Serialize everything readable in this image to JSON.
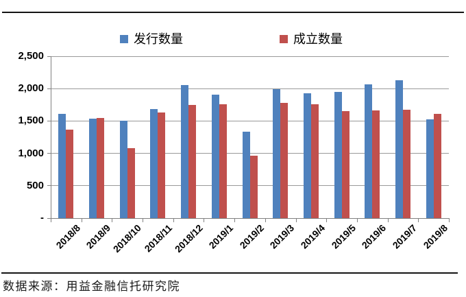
{
  "page": {
    "source_note": "数据来源：用益金融信托研究院"
  },
  "legend": {
    "issued_label": "发行数量",
    "established_label": "成立数量"
  },
  "colors": {
    "issued_blue": "#4F81BD",
    "established_red": "#C0504D",
    "gridline": "#999999",
    "axis": "#808080",
    "text_black": "#000000",
    "rule_black": "#141414"
  },
  "chart_data": {
    "type": "bar",
    "title": "",
    "xlabel": "",
    "ylabel": "",
    "ylim": [
      0,
      2500
    ],
    "ytick_interval": 500,
    "ytick_labels": [
      "-",
      "500",
      "1,000",
      "1,500",
      "2,000",
      "2,500"
    ],
    "grid": true,
    "legend_position": "top",
    "categories": [
      "2018/8",
      "2018/9",
      "2018/10",
      "2018/11",
      "2018/12",
      "2019/1",
      "2019/2",
      "2019/3",
      "2019/4",
      "2019/5",
      "2019/6",
      "2019/7",
      "2019/8"
    ],
    "series": [
      {
        "name": "发行数量",
        "color": "#4F81BD",
        "values": [
          1610,
          1535,
          1500,
          1680,
          2050,
          1910,
          1335,
          1995,
          1925,
          1950,
          2065,
          2130,
          1530
        ]
      },
      {
        "name": "成立数量",
        "color": "#C0504D",
        "values": [
          1370,
          1545,
          1085,
          1635,
          1745,
          1760,
          960,
          1780,
          1755,
          1650,
          1660,
          1675,
          1605
        ]
      }
    ]
  }
}
